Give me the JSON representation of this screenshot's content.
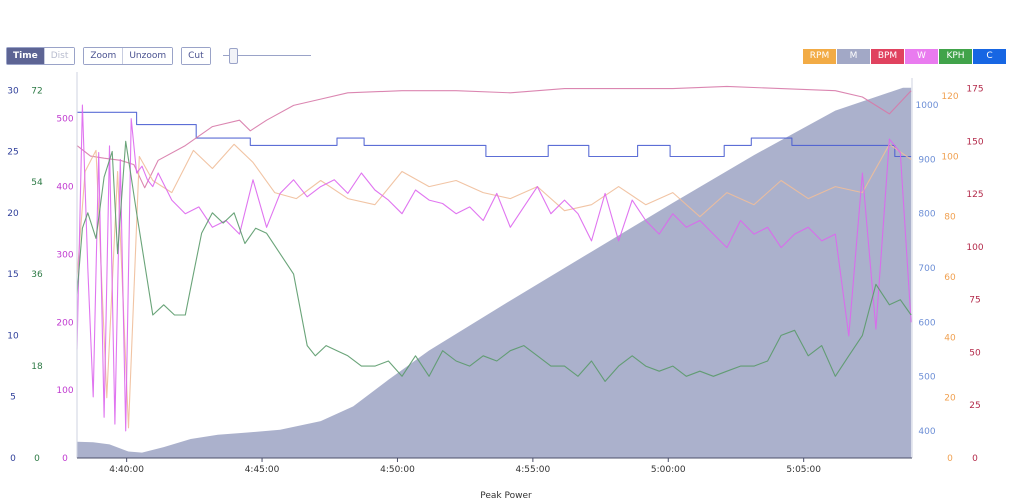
{
  "toolbar": {
    "time_label": "Time",
    "dist_label": "Dist",
    "zoom_label": "Zoom",
    "unzoom_label": "Unzoom",
    "cut_label": "Cut"
  },
  "legend": [
    {
      "label": "RPM",
      "color": "#f2ab45"
    },
    {
      "label": "M",
      "color": "#a2a8c6"
    },
    {
      "label": "BPM",
      "color": "#e0425f"
    },
    {
      "label": "W",
      "color": "#e97bef"
    },
    {
      "label": "KPH",
      "color": "#41a34a"
    },
    {
      "label": "C",
      "color": "#1766e3"
    }
  ],
  "chart_data": {
    "type": "line",
    "x": {
      "ticks": [
        "4:40:00",
        "4:45:00",
        "4:50:00",
        "4:55:00",
        "5:00:00",
        "5:05:00"
      ],
      "range": [
        "4:38:10",
        "5:09:00"
      ]
    },
    "bottom_label": "Peak Power",
    "axes": {
      "C": {
        "ticks": [
          "0",
          "5",
          "10",
          "15",
          "20",
          "25",
          "30"
        ],
        "range": [
          0,
          31
        ],
        "color": "#2f3f9a"
      },
      "KPH": {
        "ticks": [
          "0",
          "18",
          "36",
          "54",
          "72"
        ],
        "range": [
          0,
          74.4
        ],
        "color": "#2d7a45"
      },
      "W": {
        "ticks": [
          "0",
          "100",
          "200",
          "300",
          "400",
          "500"
        ],
        "range": [
          0,
          560
        ],
        "color": "#c03ad0"
      },
      "M": {
        "ticks": [
          "400",
          "500",
          "600",
          "700",
          "800",
          "900",
          "1000"
        ],
        "range": [
          350,
          1050
        ],
        "color": "#6d8fd6"
      },
      "RPM": {
        "ticks": [
          "0",
          "20",
          "40",
          "60",
          "80",
          "100",
          "120"
        ],
        "range": [
          0,
          126
        ],
        "color": "#f0a050"
      },
      "BPM": {
        "ticks": [
          "0",
          "25",
          "50",
          "75",
          "100",
          "125",
          "150",
          "175"
        ],
        "range": [
          0,
          180
        ],
        "color": "#b32a4a"
      }
    },
    "series": [
      {
        "name": "M",
        "color": "#a2a8c6",
        "fill": true,
        "x": [
          0,
          0.6,
          1.2,
          1.9,
          2.4,
          3.2,
          4.2,
          5.2,
          6.3,
          7.5,
          9,
          10.2,
          11.5,
          13,
          16,
          19,
          22,
          25,
          28,
          30.5,
          30.8
        ],
        "y": [
          380,
          379,
          375,
          362,
          360,
          370,
          385,
          393,
          397,
          402,
          418,
          445,
          494,
          548,
          640,
          730,
          820,
          908,
          990,
          1032,
          1032
        ]
      },
      {
        "name": "C",
        "color": "#4a5ed2",
        "step": true,
        "x": [
          0,
          2.2,
          2.2,
          4.4,
          4.4,
          6.4,
          6.4,
          9.6,
          9.6,
          10.6,
          10.6,
          15.1,
          15.1,
          17.4,
          17.4,
          18.9,
          18.9,
          20.7,
          20.7,
          21.9,
          21.9,
          23.9,
          23.9,
          24.9,
          24.9,
          26.4,
          26.4,
          30.2,
          30.2,
          30.8
        ],
        "y": [
          28.2,
          28.2,
          27.2,
          27.2,
          26.1,
          26.1,
          25.5,
          25.5,
          26.1,
          26.1,
          25.5,
          25.5,
          24.6,
          24.6,
          25.5,
          25.5,
          24.6,
          24.6,
          25.5,
          25.5,
          24.6,
          24.6,
          25.5,
          25.5,
          26.1,
          26.1,
          25.5,
          25.5,
          24.6,
          24.6
        ]
      },
      {
        "name": "BPM",
        "color": "#d779a9",
        "x": [
          0,
          0.5,
          1.0,
          1.6,
          2.1,
          2.5,
          3.0,
          4.0,
          5.0,
          6.0,
          6.4,
          7.0,
          8.0,
          9.0,
          10.0,
          12.0,
          14.0,
          16.0,
          18.0,
          20.0,
          22.0,
          24.0,
          26.0,
          28.0,
          29.0,
          30.0,
          30.8
        ],
        "y": [
          148,
          143,
          142,
          141,
          139,
          128,
          141,
          148,
          157,
          160,
          155,
          160,
          167,
          170,
          173,
          174,
          174,
          173,
          175,
          175,
          175,
          176,
          175,
          174,
          171,
          163,
          174
        ]
      },
      {
        "name": "RPM",
        "color": "#f0be9a",
        "x": [
          0,
          0.3,
          0.7,
          1.1,
          1.5,
          1.9,
          2.3,
          2.8,
          3.5,
          4.3,
          5.0,
          5.8,
          6.5,
          7.3,
          8.1,
          9.0,
          10.0,
          11.0,
          12.0,
          13.0,
          14.0,
          15.0,
          16.0,
          17.0,
          18.0,
          19.0,
          20.0,
          21.0,
          22.0,
          23.0,
          24.0,
          25.0,
          26.0,
          27.0,
          28.0,
          29.0,
          30.0,
          30.8
        ],
        "y": [
          60,
          95,
          102,
          20,
          95,
          10,
          100,
          92,
          88,
          102,
          96,
          104,
          98,
          88,
          86,
          92,
          86,
          84,
          95,
          90,
          92,
          88,
          86,
          90,
          82,
          84,
          90,
          84,
          88,
          80,
          88,
          84,
          92,
          86,
          90,
          88,
          104,
          99
        ]
      },
      {
        "name": "W",
        "color": "#dd66ee",
        "x": [
          0,
          0.2,
          0.4,
          0.6,
          0.8,
          1.0,
          1.2,
          1.4,
          1.6,
          1.8,
          2.0,
          2.2,
          2.4,
          2.6,
          2.8,
          3.0,
          3.5,
          4.0,
          4.5,
          5.0,
          5.5,
          6.0,
          6.5,
          7.0,
          7.5,
          8.0,
          8.5,
          9.0,
          9.5,
          10.0,
          10.5,
          11.0,
          11.5,
          12.0,
          12.5,
          13.0,
          13.5,
          14.0,
          14.5,
          15.0,
          15.5,
          16.0,
          16.5,
          17.0,
          17.5,
          18.0,
          18.5,
          19.0,
          19.5,
          20.0,
          20.5,
          21.0,
          21.5,
          22.0,
          22.5,
          23.0,
          23.5,
          24.0,
          24.5,
          25.0,
          25.5,
          26.0,
          26.5,
          27.0,
          27.5,
          28.0,
          28.5,
          29.0,
          29.5,
          30.0,
          30.4,
          30.8
        ],
        "y": [
          160,
          520,
          280,
          90,
          450,
          60,
          460,
          50,
          440,
          40,
          500,
          420,
          430,
          410,
          400,
          420,
          380,
          360,
          370,
          340,
          350,
          330,
          410,
          340,
          390,
          410,
          385,
          400,
          410,
          390,
          420,
          395,
          380,
          360,
          395,
          380,
          375,
          360,
          370,
          350,
          390,
          340,
          370,
          400,
          360,
          380,
          360,
          320,
          390,
          320,
          380,
          350,
          330,
          360,
          340,
          350,
          330,
          310,
          350,
          330,
          340,
          310,
          330,
          340,
          320,
          330,
          180,
          420,
          190,
          470,
          450,
          200
        ]
      },
      {
        "name": "KPH",
        "color": "#5a9a6a",
        "x": [
          0,
          0.2,
          0.4,
          0.7,
          1.0,
          1.3,
          1.5,
          1.8,
          2.0,
          2.2,
          2.5,
          2.8,
          3.2,
          3.6,
          4.0,
          4.3,
          4.6,
          5.0,
          5.4,
          5.8,
          6.2,
          6.6,
          7.0,
          7.5,
          8.0,
          8.5,
          8.8,
          9.2,
          9.6,
          10.0,
          10.5,
          11.0,
          11.5,
          12.0,
          12.5,
          13.0,
          13.5,
          14.0,
          14.5,
          15.0,
          15.5,
          16.0,
          16.5,
          17.0,
          17.5,
          18.0,
          18.5,
          19.0,
          19.5,
          20.0,
          20.5,
          21.0,
          21.5,
          22.0,
          22.5,
          23.0,
          23.5,
          24.0,
          24.5,
          25.0,
          25.5,
          26.0,
          26.5,
          27.0,
          27.5,
          28.0,
          28.5,
          29.0,
          29.5,
          30.0,
          30.4,
          30.8
        ],
        "y": [
          32,
          45,
          48,
          43,
          55,
          60,
          40,
          62,
          55,
          48,
          38,
          28,
          30,
          28,
          28,
          36,
          44,
          48,
          46,
          48,
          42,
          45,
          44,
          40,
          36,
          22,
          20,
          22,
          21,
          20,
          18,
          18,
          19,
          16,
          20,
          16,
          21,
          19,
          18,
          20,
          19,
          21,
          22,
          20,
          18,
          18,
          16,
          19,
          15,
          18,
          20,
          18,
          17,
          18,
          16,
          17,
          16,
          17,
          18,
          18,
          19,
          24,
          25,
          20,
          22,
          16,
          20,
          24,
          34,
          30,
          31,
          28
        ]
      }
    ]
  }
}
